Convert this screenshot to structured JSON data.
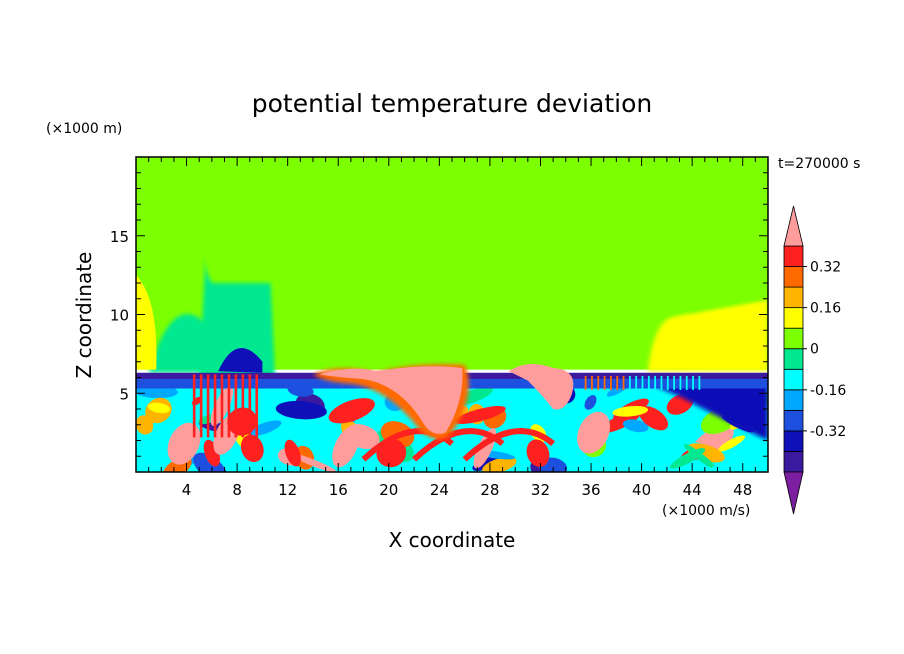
{
  "chart_data": {
    "type": "heatmap",
    "title": "potential temperature deviation",
    "time_label": "t=270000 s",
    "xlabel": "X coordinate",
    "ylabel": "Z coordinate",
    "x_unit": "(×1000 m/s)",
    "y_unit": "(×1000 m)",
    "xlim": [
      0,
      50
    ],
    "ylim": [
      0,
      20
    ],
    "x_ticks": [
      "4",
      "8",
      "12",
      "16",
      "20",
      "24",
      "28",
      "32",
      "36",
      "40",
      "44",
      "48"
    ],
    "y_ticks": [
      "5",
      "10",
      "15"
    ],
    "colorbar": {
      "levels": [
        -0.48,
        -0.4,
        -0.32,
        -0.24,
        -0.16,
        -0.08,
        0,
        0.08,
        0.16,
        0.24,
        0.32,
        0.4
      ],
      "tick_labels": [
        "-0.32",
        "-0.16",
        "0",
        "0.16",
        "0.32"
      ],
      "colors": [
        "#7b1fa0",
        "#3b1aa0",
        "#1010b8",
        "#1e50e0",
        "#00a8ff",
        "#00ffff",
        "#00e890",
        "#7cff00",
        "#ffff00",
        "#ffb400",
        "#ff6a00",
        "#ff2020",
        "#ff9c9c"
      ],
      "extend": "both"
    },
    "regions": [
      {
        "name": "upper-field",
        "level": 0.04,
        "x": [
          0,
          50
        ],
        "z": [
          6.5,
          20
        ]
      },
      {
        "name": "upper-cool-column",
        "level": -0.06,
        "x": [
          5,
          11
        ],
        "z": [
          6,
          15
        ]
      },
      {
        "name": "left-warm-edge",
        "level": 0.12,
        "x": [
          0,
          1.5
        ],
        "z": [
          7,
          13
        ]
      },
      {
        "name": "right-warm-edge",
        "level": 0.12,
        "x": [
          42,
          50
        ],
        "z": [
          6.5,
          11
        ]
      },
      {
        "name": "stable-layer",
        "level": -0.44,
        "x": [
          0,
          50
        ],
        "z": [
          5.9,
          6.3
        ]
      },
      {
        "name": "lower-mixed-layer",
        "level": -0.1,
        "x": [
          0,
          50
        ],
        "z": [
          0,
          5.9
        ]
      },
      {
        "name": "warm-plume-24",
        "level": 0.44,
        "x": [
          22,
          26
        ],
        "z": [
          1.5,
          6.5
        ]
      },
      {
        "name": "warm-plume-31",
        "level": 0.44,
        "x": [
          29.5,
          34.5
        ],
        "z": [
          3.5,
          6.5
        ]
      },
      {
        "name": "warm-cells-8",
        "level": 0.36,
        "x": [
          5,
          10
        ],
        "z": [
          0,
          5.8
        ]
      },
      {
        "name": "cold-pool-right",
        "level": -0.4,
        "x": [
          40,
          50
        ],
        "z": [
          0,
          5.8
        ]
      }
    ]
  }
}
